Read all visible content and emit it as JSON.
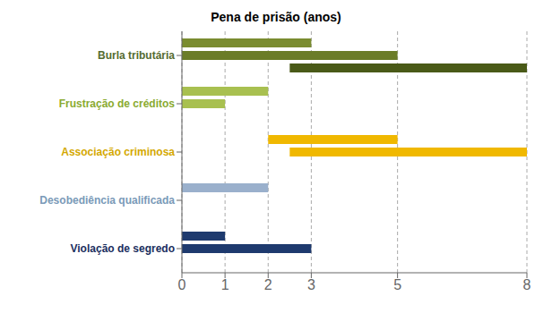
{
  "chart_data": {
    "type": "bar",
    "orientation": "horizontal",
    "title": "Pena de prisão (anos)",
    "categories": [
      "Burla tributária",
      "Frustração de créditos",
      "Associação criminosa",
      "Desobediência qualificada",
      "Violação de segredo"
    ],
    "category_colors": [
      "#556b2f",
      "#8aaa30",
      "#d4a800",
      "#7a9ab8",
      "#1a2e5e"
    ],
    "series": [
      {
        "left": [
          0,
          0,
          2,
          0,
          0
        ],
        "values": [
          3,
          2,
          3,
          2,
          1
        ],
        "colors": [
          "#7a8c30",
          "#a8c050",
          "#f0b800",
          "#9ab0cc",
          "#1e3a6e"
        ]
      },
      {
        "left": [
          0,
          0,
          2.5,
          null,
          0
        ],
        "values": [
          5,
          1,
          5.5,
          null,
          3
        ],
        "colors": [
          "#6b7c28",
          "#a8c050",
          "#f0b800",
          null,
          "#1e3a6e"
        ]
      },
      {
        "left": [
          2.5,
          null,
          null,
          null,
          null
        ],
        "values": [
          5.5,
          null,
          null,
          null,
          null
        ],
        "colors": [
          "#4a5a18",
          null,
          null,
          null,
          null
        ]
      }
    ],
    "xlim": [
      0,
      8
    ],
    "xticks": [
      0,
      1,
      2,
      3,
      5,
      8
    ],
    "grid": true
  }
}
